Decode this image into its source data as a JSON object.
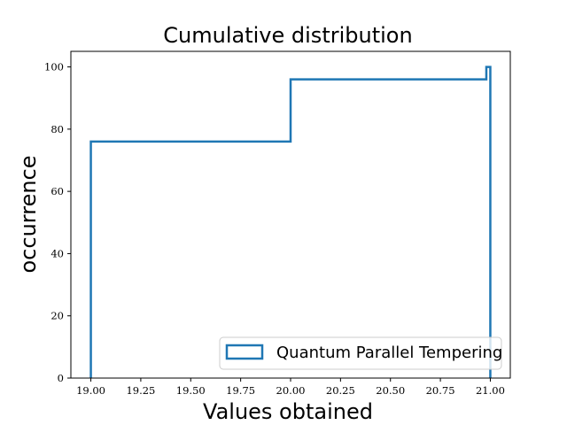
{
  "chart_data": {
    "type": "line",
    "title": "Cumulative distribution",
    "xlabel": "Values obtained",
    "ylabel": "occurrence",
    "xlim": [
      18.9,
      21.1
    ],
    "ylim": [
      0,
      105
    ],
    "xticks": [
      19.0,
      19.25,
      19.5,
      19.75,
      20.0,
      20.25,
      20.5,
      20.75,
      21.0
    ],
    "xtick_labels": [
      "19.00",
      "19.25",
      "19.50",
      "19.75",
      "20.00",
      "20.25",
      "20.50",
      "20.75",
      "21.00"
    ],
    "yticks": [
      0,
      20,
      40,
      60,
      80,
      100
    ],
    "ytick_labels": [
      "0",
      "20",
      "40",
      "60",
      "80",
      "100"
    ],
    "grid": false,
    "legend_position": "lower-right",
    "series": [
      {
        "name": "Quantum Parallel Tempering",
        "color": "#1f77b4",
        "style": "step-histogram",
        "points": [
          [
            19.0,
            0
          ],
          [
            19.0,
            76
          ],
          [
            20.0,
            76
          ],
          [
            20.0,
            96
          ],
          [
            20.98,
            96
          ],
          [
            20.98,
            100
          ],
          [
            21.0,
            100
          ],
          [
            21.0,
            0
          ]
        ]
      }
    ]
  }
}
